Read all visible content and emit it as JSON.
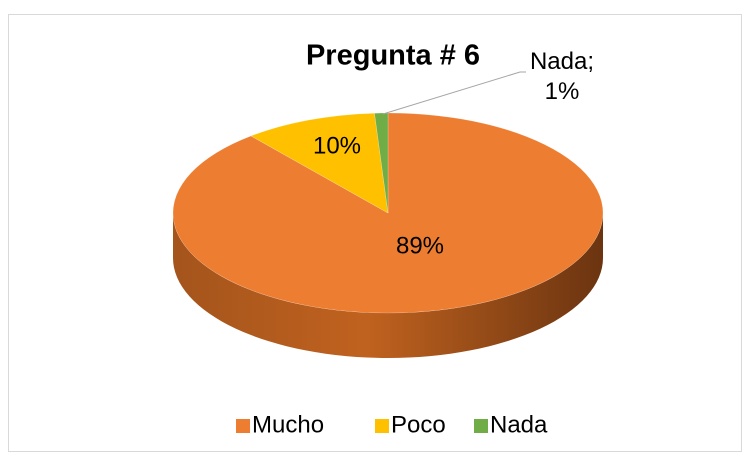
{
  "chart_data": {
    "type": "pie",
    "title": "Pregunta # 6",
    "categories": [
      "Mucho",
      "Poco",
      "Nada"
    ],
    "values": [
      89,
      10,
      1
    ],
    "value_labels": [
      "89%",
      "10%",
      "Nada;\n1%"
    ],
    "colors": [
      "#ed7d31",
      "#ffc000",
      "#70ad47"
    ],
    "legend": "bottom"
  }
}
